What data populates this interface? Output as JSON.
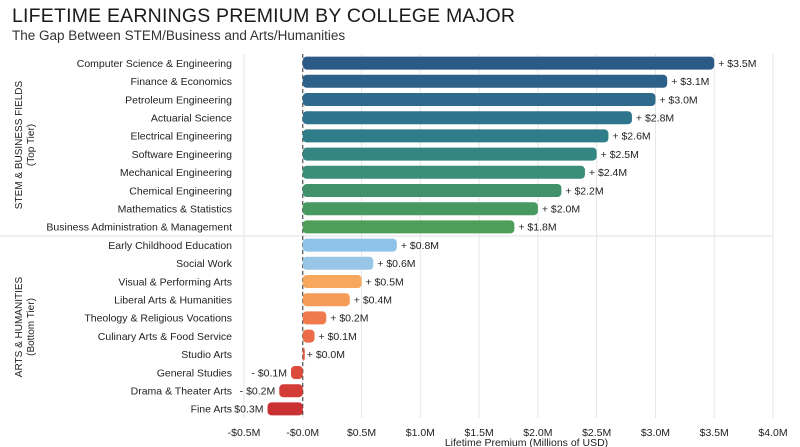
{
  "title": "LIFETIME EARNINGS PREMIUM BY COLLEGE MAJOR",
  "subtitle": "The Gap Between STEM/Business and Arts/Humanities",
  "chart_data": {
    "type": "bar",
    "orientation": "horizontal",
    "xlabel": "Lifetime Premium (Millions of USD)",
    "xlim": [
      -0.5,
      4.0
    ],
    "xticks": [
      {
        "value": -0.5,
        "label": "-$0.5M"
      },
      {
        "value": 0.0,
        "label": "-$0.0M"
      },
      {
        "value": 0.5,
        "label": "$0.5M"
      },
      {
        "value": 1.0,
        "label": "$1.0M"
      },
      {
        "value": 1.5,
        "label": "$1.5M"
      },
      {
        "value": 2.0,
        "label": "$2.0M"
      },
      {
        "value": 2.5,
        "label": "$2.5M"
      },
      {
        "value": 3.0,
        "label": "$3.0M"
      },
      {
        "value": 3.5,
        "label": "$3.5M"
      },
      {
        "value": 4.0,
        "label": "$4.0M"
      }
    ],
    "groups": [
      {
        "label": "STEM & BUSINESS FIELDS",
        "sublabel": "(Top Tier)",
        "start": 0,
        "end": 9
      },
      {
        "label": "ARTS & HUMANITIES",
        "sublabel": "(Bottom Tier)",
        "start": 10,
        "end": 19
      }
    ],
    "bars": [
      {
        "category": "Computer Science & Engineering",
        "value": 3.5,
        "label": "+ $3.5M",
        "color": "#2b5a86"
      },
      {
        "category": "Finance & Economics",
        "value": 3.1,
        "label": "+ $3.1M",
        "color": "#2c6089"
      },
      {
        "category": "Petroleum Engineering",
        "value": 3.0,
        "label": "+ $3.0M",
        "color": "#2d6a8c"
      },
      {
        "category": "Actuarial Science",
        "value": 2.8,
        "label": "+ $2.8M",
        "color": "#2e748c"
      },
      {
        "category": "Electrical Engineering",
        "value": 2.6,
        "label": "+ $2.6M",
        "color": "#2f7d88"
      },
      {
        "category": "Software Engineering",
        "value": 2.5,
        "label": "+ $2.5M",
        "color": "#338682"
      },
      {
        "category": "Mechanical Engineering",
        "value": 2.4,
        "label": "+ $2.4M",
        "color": "#3a8d76"
      },
      {
        "category": "Chemical Engineering",
        "value": 2.2,
        "label": "+ $2.2M",
        "color": "#41926b"
      },
      {
        "category": "Mathematics & Statistics",
        "value": 2.0,
        "label": "+ $2.0M",
        "color": "#479861"
      },
      {
        "category": "Business Administration & Management",
        "value": 1.8,
        "label": "+ $1.8M",
        "color": "#4e9d58"
      },
      {
        "category": "Early Childhood Education",
        "value": 0.8,
        "label": "+ $0.8M",
        "color": "#8ec3e8"
      },
      {
        "category": "Social Work",
        "value": 0.6,
        "label": "+ $0.6M",
        "color": "#98c6e6"
      },
      {
        "category": "Visual & Performing Arts",
        "value": 0.5,
        "label": "+ $0.5M",
        "color": "#f8a85c"
      },
      {
        "category": "Liberal Arts & Humanities",
        "value": 0.4,
        "label": "+ $0.4M",
        "color": "#f59d58"
      },
      {
        "category": "Theology & Religious Vocations",
        "value": 0.2,
        "label": "+ $0.2M",
        "color": "#ee7a4e"
      },
      {
        "category": "Culinary Arts & Food Service",
        "value": 0.1,
        "label": "+ $0.1M",
        "color": "#ea6c48"
      },
      {
        "category": "Studio Arts",
        "value": 0.0,
        "label": "+ $0.0M",
        "color": "#e35b42"
      },
      {
        "category": "General Studies",
        "value": -0.1,
        "label": "- $0.1M",
        "color": "#dc4a3c"
      },
      {
        "category": "Drama & Theater Arts",
        "value": -0.2,
        "label": "- $0.2M",
        "color": "#d43d37"
      },
      {
        "category": "Fine Arts",
        "value": -0.3,
        "label": "- $0.3M",
        "color": "#c93232"
      }
    ]
  }
}
